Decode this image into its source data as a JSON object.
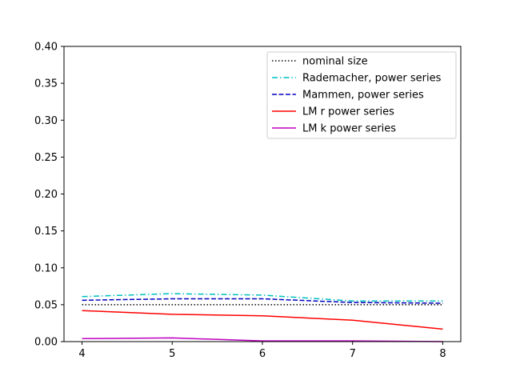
{
  "chart_data": {
    "type": "line",
    "title": "",
    "xlabel": "",
    "ylabel": "",
    "x": [
      4,
      5,
      6,
      7,
      8
    ],
    "xlim": [
      3.8,
      8.2
    ],
    "ylim": [
      0,
      0.4
    ],
    "xticks": [
      4,
      5,
      6,
      7,
      8
    ],
    "xtick_labels": [
      "4",
      "5",
      "6",
      "7",
      "8"
    ],
    "yticks": [
      0,
      0.05,
      0.1,
      0.15,
      0.2,
      0.25,
      0.3,
      0.35,
      0.4
    ],
    "ytick_labels": [
      "0.00",
      "0.05",
      "0.10",
      "0.15",
      "0.20",
      "0.25",
      "0.30",
      "0.35",
      "0.40"
    ],
    "grid": false,
    "legend_position": "top-right",
    "series": [
      {
        "name": "nominal size",
        "values": [
          0.05,
          0.05,
          0.05,
          0.05,
          0.05
        ],
        "color": "#000000",
        "style": "dotted"
      },
      {
        "name": "Rademacher, power series",
        "values": [
          0.061,
          0.065,
          0.063,
          0.055,
          0.055
        ],
        "color": "#00bfbf",
        "style": "dashdot"
      },
      {
        "name": "Mammen, power series",
        "values": [
          0.056,
          0.058,
          0.058,
          0.053,
          0.052
        ],
        "color": "#0000bf",
        "style": "dashed"
      },
      {
        "name": "LM r power series",
        "values": [
          0.042,
          0.037,
          0.035,
          0.029,
          0.017
        ],
        "color": "#ff0000",
        "style": "solid"
      },
      {
        "name": "LM k power series",
        "values": [
          0.004,
          0.005,
          0.001,
          0.001,
          0.0
        ],
        "color": "#bf00bf",
        "style": "solid"
      }
    ]
  }
}
